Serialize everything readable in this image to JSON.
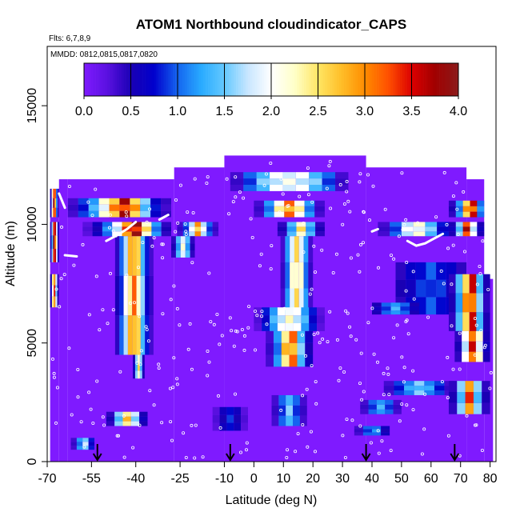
{
  "chart_data": {
    "type": "heatmap",
    "title": "ATOM1 Northbound cloudindicator_CAPS",
    "subtitle_flights": "Flts: 6,7,8,9",
    "subtitle_dates": "MMDD: 0812,0815,0817,0820",
    "xlabel": "Latitude (deg N)",
    "ylabel": "Altitude (m)",
    "xlim": [
      -70,
      82
    ],
    "ylim": [
      0,
      17500
    ],
    "x_ticks": [
      -70,
      -55,
      -40,
      -25,
      -10,
      0,
      10,
      20,
      30,
      40,
      50,
      60,
      70,
      80
    ],
    "x_tick_labels": [
      "-70",
      "-55",
      "-40",
      "-25",
      "-10",
      "0",
      "10",
      "20",
      "30",
      "40",
      "50",
      "60",
      "70",
      "80"
    ],
    "y_ticks": [
      0,
      5000,
      10000,
      15000
    ],
    "y_tick_labels": [
      "0",
      "5000",
      "10000",
      "15000"
    ],
    "colorbar": {
      "min": 0,
      "max": 4,
      "ticks": [
        0.0,
        0.5,
        1.0,
        1.5,
        2.0,
        2.5,
        3.0,
        3.5,
        4.0
      ],
      "tick_labels": [
        "0.0",
        "0.5",
        "1.0",
        "1.5",
        "2.0",
        "2.5",
        "3.0",
        "3.5",
        "4.0"
      ],
      "colors": [
        "#7f1aff",
        "#5a10e0",
        "#1a00b4",
        "#0000cd",
        "#1464f0",
        "#28aaff",
        "#64c8ff",
        "#c8e6ff",
        "#ffffff",
        "#ffffc8",
        "#ffe664",
        "#ffbe28",
        "#ff8c00",
        "#ff5000",
        "#dc0000",
        "#a00000",
        "#8b1a1a"
      ]
    },
    "background_value": 0.0,
    "envelope": [
      {
        "x0": -69,
        "x1": -66,
        "z0": 0,
        "z1": 11500
      },
      {
        "x0": -66,
        "x1": -63,
        "z0": 0,
        "z1": 11900
      },
      {
        "x0": -63,
        "x1": -27,
        "z0": 0,
        "z1": 11900
      },
      {
        "x0": -27,
        "x1": -10,
        "z0": 0,
        "z1": 12400
      },
      {
        "x0": -10,
        "x1": 38,
        "z0": 0,
        "z1": 12900
      },
      {
        "x0": 38,
        "x1": 72,
        "z0": 0,
        "z1": 12400
      },
      {
        "x0": 72,
        "x1": 78,
        "z0": 0,
        "z1": 11900
      },
      {
        "x0": 78,
        "x1": 81,
        "z0": 0,
        "z1": 7700
      }
    ],
    "cloud_bands": [
      {
        "x0": -69,
        "x1": -66,
        "z0": 10300,
        "z1": 11500,
        "profile": [
          0.6,
          2.2,
          3.8,
          3.2,
          1.2,
          0.4
        ]
      },
      {
        "x0": -69,
        "x1": -66,
        "z0": 8400,
        "z1": 10100,
        "profile": [
          0.5,
          1.6,
          3.9,
          3.6,
          2.2,
          0.6
        ]
      },
      {
        "x0": -69,
        "x1": -66,
        "z0": 6500,
        "z1": 7900,
        "profile": [
          0.6,
          2.4,
          3.4,
          1.8,
          0.5
        ]
      },
      {
        "x0": -63,
        "x1": -28,
        "z0": 10300,
        "z1": 11100,
        "profile": [
          0.4,
          0.9,
          1.4,
          2.2,
          3.1,
          3.8,
          3.0,
          1.6,
          0.8,
          0.4
        ]
      },
      {
        "x0": -58,
        "x1": -28,
        "z0": 9500,
        "z1": 10100,
        "profile": [
          0.3,
          0.6,
          1.2,
          2.0,
          3.4,
          3.9,
          2.6,
          1.2,
          0.5
        ]
      },
      {
        "x0": -47,
        "x1": -34,
        "z0": 4500,
        "z1": 9500,
        "profile": [
          0.5,
          1.0,
          2.0,
          2.8,
          3.2,
          2.6,
          1.6,
          0.8,
          0.4
        ]
      },
      {
        "x0": -41,
        "x1": -37,
        "z0": 3500,
        "z1": 4500,
        "profile": [
          0.6,
          1.6,
          2.6,
          1.6,
          0.6
        ]
      },
      {
        "x0": -26,
        "x1": -12,
        "z0": 9500,
        "z1": 10100,
        "profile": [
          0.4,
          1.0,
          2.0,
          3.0,
          2.0,
          1.0,
          0.4
        ]
      },
      {
        "x0": -28,
        "x1": -20,
        "z0": 8600,
        "z1": 9500,
        "profile": [
          0.5,
          1.4,
          2.2,
          1.4,
          0.5
        ]
      },
      {
        "x0": -8,
        "x1": 32,
        "z0": 11400,
        "z1": 12200,
        "profile": [
          0.4,
          1.0,
          1.6,
          2.0,
          2.1,
          2.0,
          1.6,
          1.0,
          0.4
        ]
      },
      {
        "x0": 0,
        "x1": 24,
        "z0": 10300,
        "z1": 11000,
        "profile": [
          0.4,
          1.2,
          2.4,
          3.2,
          2.4,
          1.2,
          0.4
        ]
      },
      {
        "x0": 8,
        "x1": 24,
        "z0": 9500,
        "z1": 10100,
        "profile": [
          0.5,
          1.4,
          2.6,
          1.4,
          0.5
        ]
      },
      {
        "x0": 9,
        "x1": 20,
        "z0": 6200,
        "z1": 9500,
        "profile": [
          0.4,
          1.2,
          2.2,
          2.6,
          2.2,
          1.2,
          0.4
        ]
      },
      {
        "x0": 0,
        "x1": 24,
        "z0": 5500,
        "z1": 6500,
        "profile": [
          0.3,
          0.8,
          1.4,
          2.0,
          2.3,
          2.0,
          1.4,
          0.8,
          0.3
        ]
      },
      {
        "x0": 4,
        "x1": 20,
        "z0": 4000,
        "z1": 5500,
        "profile": [
          0.4,
          1.2,
          2.8,
          3.2,
          1.6,
          0.6
        ]
      },
      {
        "x0": 6,
        "x1": 18,
        "z0": 1500,
        "z1": 2800,
        "profile": [
          0.4,
          1.0,
          1.6,
          1.0,
          0.4
        ]
      },
      {
        "x0": 42,
        "x1": 66,
        "z0": 9500,
        "z1": 10100,
        "profile": [
          0.4,
          1.0,
          2.0,
          2.2,
          1.6,
          0.8
        ]
      },
      {
        "x0": 66,
        "x1": 78,
        "z0": 10300,
        "z1": 11000,
        "profile": [
          0.5,
          1.2,
          3.0,
          3.6,
          1.2
        ]
      },
      {
        "x0": 66,
        "x1": 78,
        "z0": 9500,
        "z1": 10100,
        "profile": [
          0.6,
          1.6,
          3.8,
          2.0,
          0.6
        ]
      },
      {
        "x0": 48,
        "x1": 72,
        "z0": 6200,
        "z1": 8400,
        "profile": [
          0.5,
          0.7,
          0.9,
          1.0,
          0.9,
          0.7,
          0.5
        ]
      },
      {
        "x0": 40,
        "x1": 56,
        "z0": 6200,
        "z1": 6700,
        "profile": [
          0.6,
          1.0,
          1.4,
          1.0,
          0.6
        ]
      },
      {
        "x0": 66,
        "x1": 80,
        "z0": 5500,
        "z1": 7900,
        "profile": [
          0.5,
          1.4,
          3.0,
          3.6,
          1.6,
          0.5
        ]
      },
      {
        "x0": 68,
        "x1": 80,
        "z0": 4200,
        "z1": 5500,
        "profile": [
          0.5,
          2.0,
          3.6,
          2.2,
          0.6
        ]
      },
      {
        "x0": 44,
        "x1": 68,
        "z0": 2800,
        "z1": 3400,
        "profile": [
          0.4,
          0.9,
          1.3,
          1.6,
          1.3,
          0.9,
          0.4
        ]
      },
      {
        "x0": 66,
        "x1": 80,
        "z0": 2000,
        "z1": 3400,
        "profile": [
          0.5,
          1.6,
          3.4,
          1.6,
          0.5
        ]
      },
      {
        "x0": 36,
        "x1": 50,
        "z0": 2000,
        "z1": 2600,
        "profile": [
          0.4,
          1.0,
          1.4,
          1.0,
          0.4
        ]
      },
      {
        "x0": -50,
        "x1": -36,
        "z0": 1500,
        "z1": 2100,
        "profile": [
          0.5,
          1.6,
          2.8,
          1.8,
          0.6
        ]
      },
      {
        "x0": -62,
        "x1": -54,
        "z0": 500,
        "z1": 1000,
        "profile": [
          0.4,
          1.2,
          1.8,
          0.8
        ]
      },
      {
        "x0": -14,
        "x1": -2,
        "z0": 1300,
        "z1": 2300,
        "profile": [
          0.3,
          0.6,
          0.9,
          0.6,
          0.3
        ]
      },
      {
        "x0": 34,
        "x1": 46,
        "z0": 1100,
        "z1": 1500,
        "profile": [
          0.4,
          1.0,
          1.2,
          0.6
        ]
      }
    ],
    "flight_track_segments": [
      [
        [
          -66,
          11300
        ],
        [
          -65,
          11000
        ],
        [
          -64,
          10700
        ]
      ],
      [
        [
          -50,
          9300
        ],
        [
          -47,
          9500
        ],
        [
          -43,
          9800
        ],
        [
          -40,
          10100
        ]
      ],
      [
        [
          -32,
          10200
        ],
        [
          -29,
          10400
        ]
      ],
      [
        [
          52,
          9300
        ],
        [
          55,
          9100
        ],
        [
          58,
          9200
        ],
        [
          61,
          9400
        ],
        [
          64,
          9600
        ]
      ],
      [
        [
          40,
          9700
        ],
        [
          42,
          9800
        ]
      ],
      [
        [
          -64,
          8700
        ],
        [
          -60,
          8650
        ]
      ]
    ],
    "sample_points_count": 320,
    "arrow_latitudes": [
      -53,
      -8,
      38,
      68
    ]
  }
}
